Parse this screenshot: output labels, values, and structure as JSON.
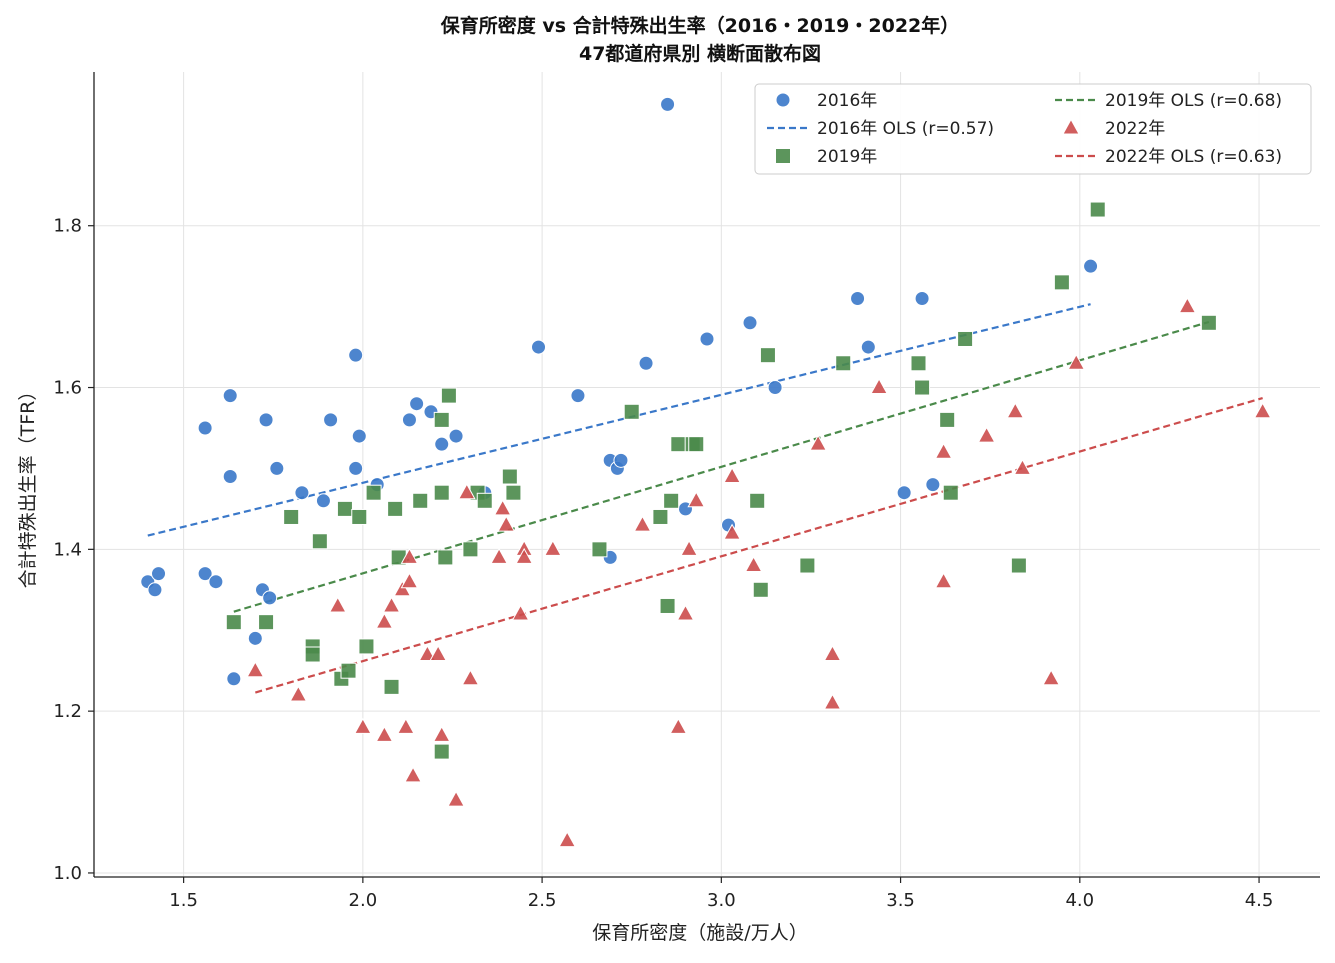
{
  "chart_data": {
    "type": "scatter",
    "title_line1": "保育所密度 vs 合計特殊出生率（2016・2019・2022年）",
    "title_line2": "47都道府県別 横断面散布図",
    "xlabel": "保育所密度（施設/万人）",
    "ylabel": "合計特殊出生率（TFR）",
    "xlim": [
      1.25,
      4.67
    ],
    "ylim": [
      0.995,
      1.99
    ],
    "xticks": [
      1.5,
      2.0,
      2.5,
      3.0,
      3.5,
      4.0,
      4.5
    ],
    "xtick_labels": [
      "1.5",
      "2.0",
      "2.5",
      "3.0",
      "3.5",
      "4.0",
      "4.5"
    ],
    "yticks": [
      1.0,
      1.2,
      1.4,
      1.6,
      1.8
    ],
    "ytick_labels": [
      "1.0",
      "1.2",
      "1.4",
      "1.6",
      "1.8"
    ],
    "grid": true,
    "legend_position": "top-right",
    "legend": [
      {
        "label": "2016年",
        "kind": "scatter",
        "marker": "circle",
        "color": "#3a78c9"
      },
      {
        "label": "2016年 OLS (r=0.57)",
        "kind": "line",
        "color": "#3a78c9"
      },
      {
        "label": "2019年",
        "kind": "scatter",
        "marker": "square",
        "color": "#4a8a4a"
      },
      {
        "label": "2019年 OLS (r=0.68)",
        "kind": "line",
        "color": "#4a8a4a"
      },
      {
        "label": "2022年",
        "kind": "scatter",
        "marker": "triangle",
        "color": "#cc4c4c"
      },
      {
        "label": "2022年 OLS (r=0.63)",
        "kind": "line",
        "color": "#cc4c4c"
      }
    ],
    "series": [
      {
        "name": "2016年",
        "marker": "circle",
        "color": "#3a78c9",
        "points": [
          [
            1.4,
            1.36
          ],
          [
            1.42,
            1.35
          ],
          [
            1.43,
            1.37
          ],
          [
            1.56,
            1.55
          ],
          [
            1.56,
            1.37
          ],
          [
            1.59,
            1.36
          ],
          [
            1.63,
            1.59
          ],
          [
            1.63,
            1.49
          ],
          [
            1.64,
            1.24
          ],
          [
            1.7,
            1.29
          ],
          [
            1.72,
            1.35
          ],
          [
            1.73,
            1.56
          ],
          [
            1.74,
            1.34
          ],
          [
            1.76,
            1.5
          ],
          [
            1.83,
            1.47
          ],
          [
            1.89,
            1.46
          ],
          [
            1.91,
            1.56
          ],
          [
            1.98,
            1.64
          ],
          [
            1.98,
            1.5
          ],
          [
            1.99,
            1.54
          ],
          [
            2.04,
            1.48
          ],
          [
            2.13,
            1.56
          ],
          [
            2.15,
            1.58
          ],
          [
            2.19,
            1.57
          ],
          [
            2.22,
            1.53
          ],
          [
            2.26,
            1.54
          ],
          [
            2.34,
            1.47
          ],
          [
            2.49,
            1.65
          ],
          [
            2.6,
            1.59
          ],
          [
            2.69,
            1.39
          ],
          [
            2.69,
            1.51
          ],
          [
            2.71,
            1.5
          ],
          [
            2.72,
            1.51
          ],
          [
            2.79,
            1.63
          ],
          [
            2.85,
            1.95
          ],
          [
            2.9,
            1.45
          ],
          [
            2.96,
            1.66
          ],
          [
            3.02,
            1.43
          ],
          [
            3.08,
            1.68
          ],
          [
            3.15,
            1.6
          ],
          [
            3.38,
            1.71
          ],
          [
            3.41,
            1.65
          ],
          [
            3.51,
            1.47
          ],
          [
            3.56,
            1.71
          ],
          [
            3.59,
            1.48
          ],
          [
            4.03,
            1.75
          ]
        ],
        "ols": {
          "x": [
            1.4,
            4.03
          ],
          "y": [
            1.417,
            1.703
          ]
        }
      },
      {
        "name": "2019年",
        "marker": "square",
        "color": "#4a8a4a",
        "points": [
          [
            1.64,
            1.31
          ],
          [
            1.73,
            1.31
          ],
          [
            1.8,
            1.44
          ],
          [
            1.86,
            1.28
          ],
          [
            1.86,
            1.27
          ],
          [
            1.88,
            1.41
          ],
          [
            1.94,
            1.24
          ],
          [
            1.95,
            1.45
          ],
          [
            1.96,
            1.25
          ],
          [
            1.99,
            1.44
          ],
          [
            2.01,
            1.28
          ],
          [
            2.03,
            1.47
          ],
          [
            2.08,
            1.23
          ],
          [
            2.09,
            1.45
          ],
          [
            2.1,
            1.39
          ],
          [
            2.16,
            1.46
          ],
          [
            2.22,
            1.15
          ],
          [
            2.22,
            1.56
          ],
          [
            2.22,
            1.47
          ],
          [
            2.23,
            1.39
          ],
          [
            2.24,
            1.59
          ],
          [
            2.3,
            1.4
          ],
          [
            2.32,
            1.47
          ],
          [
            2.34,
            1.46
          ],
          [
            2.41,
            1.49
          ],
          [
            2.42,
            1.47
          ],
          [
            2.66,
            1.4
          ],
          [
            2.75,
            1.57
          ],
          [
            2.83,
            1.44
          ],
          [
            2.85,
            1.33
          ],
          [
            2.86,
            1.46
          ],
          [
            2.88,
            1.53
          ],
          [
            2.92,
            1.53
          ],
          [
            2.93,
            1.53
          ],
          [
            3.1,
            1.46
          ],
          [
            3.11,
            1.35
          ],
          [
            3.13,
            1.64
          ],
          [
            3.24,
            1.38
          ],
          [
            3.34,
            1.63
          ],
          [
            3.55,
            1.63
          ],
          [
            3.56,
            1.6
          ],
          [
            3.63,
            1.56
          ],
          [
            3.64,
            1.47
          ],
          [
            3.68,
            1.66
          ],
          [
            3.83,
            1.38
          ],
          [
            3.95,
            1.73
          ],
          [
            4.05,
            1.82
          ],
          [
            4.36,
            1.68
          ]
        ],
        "ols": {
          "x": [
            1.64,
            4.36
          ],
          "y": [
            1.323,
            1.681
          ]
        }
      },
      {
        "name": "2022年",
        "marker": "triangle",
        "color": "#cc4c4c",
        "points": [
          [
            1.7,
            1.25
          ],
          [
            1.82,
            1.22
          ],
          [
            1.93,
            1.33
          ],
          [
            2.0,
            1.18
          ],
          [
            2.06,
            1.31
          ],
          [
            2.06,
            1.17
          ],
          [
            2.08,
            1.33
          ],
          [
            2.11,
            1.35
          ],
          [
            2.12,
            1.18
          ],
          [
            2.13,
            1.39
          ],
          [
            2.13,
            1.36
          ],
          [
            2.14,
            1.12
          ],
          [
            2.18,
            1.27
          ],
          [
            2.21,
            1.27
          ],
          [
            2.22,
            1.17
          ],
          [
            2.26,
            1.09
          ],
          [
            2.29,
            1.47
          ],
          [
            2.3,
            1.24
          ],
          [
            2.38,
            1.39
          ],
          [
            2.39,
            1.45
          ],
          [
            2.4,
            1.43
          ],
          [
            2.44,
            1.32
          ],
          [
            2.45,
            1.4
          ],
          [
            2.45,
            1.39
          ],
          [
            2.53,
            1.4
          ],
          [
            2.57,
            1.04
          ],
          [
            2.78,
            1.43
          ],
          [
            2.88,
            1.18
          ],
          [
            2.9,
            1.32
          ],
          [
            2.91,
            1.4
          ],
          [
            2.93,
            1.46
          ],
          [
            3.03,
            1.42
          ],
          [
            3.03,
            1.49
          ],
          [
            3.09,
            1.38
          ],
          [
            3.27,
            1.53
          ],
          [
            3.31,
            1.21
          ],
          [
            3.31,
            1.27
          ],
          [
            3.44,
            1.6
          ],
          [
            3.62,
            1.36
          ],
          [
            3.62,
            1.52
          ],
          [
            3.74,
            1.54
          ],
          [
            3.82,
            1.57
          ],
          [
            3.84,
            1.5
          ],
          [
            3.92,
            1.24
          ],
          [
            3.99,
            1.63
          ],
          [
            4.3,
            1.7
          ],
          [
            4.51,
            1.57
          ]
        ],
        "ols": {
          "x": [
            1.7,
            4.51
          ],
          "y": [
            1.223,
            1.587
          ]
        }
      }
    ]
  }
}
